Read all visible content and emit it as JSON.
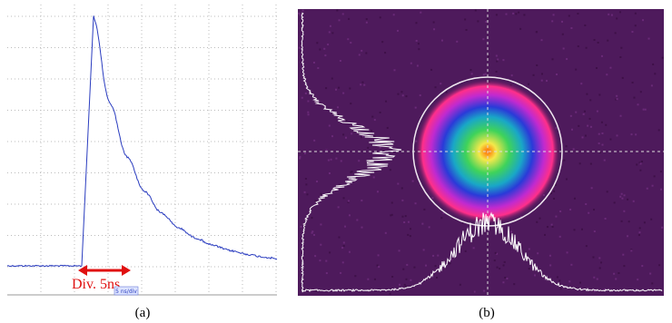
{
  "panel_a": {
    "annotation": "Div. 5ns",
    "scale_label": "5 ns/div",
    "caption": "(a)"
  },
  "panel_b": {
    "caption": "(b)"
  }
}
